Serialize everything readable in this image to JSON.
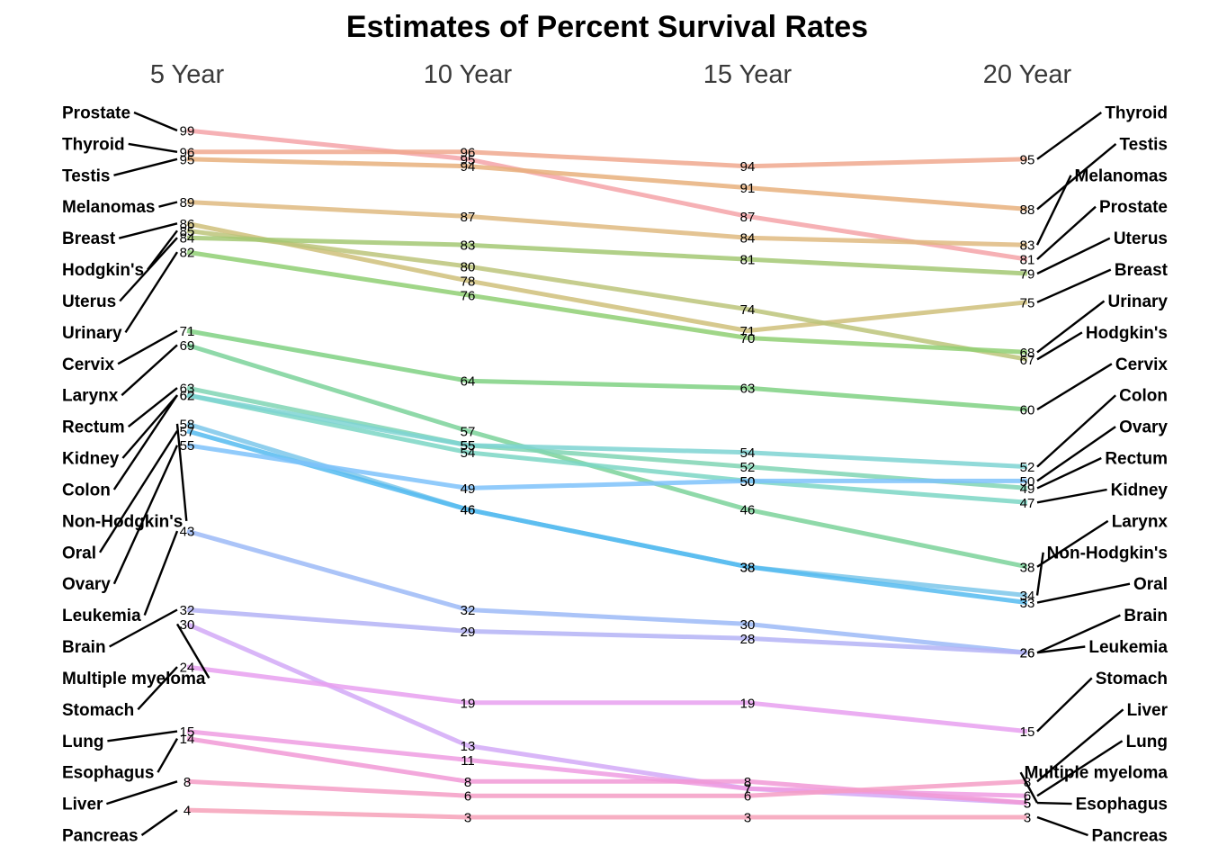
{
  "chart_data": {
    "type": "line",
    "title": "Estimates of Percent Survival Rates",
    "x": [
      "5 Year",
      "10 Year",
      "15 Year",
      "20 Year"
    ],
    "ylim": [
      3,
      99
    ],
    "grid": false,
    "legend": "none",
    "series": [
      {
        "name": "Prostate",
        "values": [
          99,
          95,
          87,
          81
        ],
        "color": "#f4a3a8"
      },
      {
        "name": "Thyroid",
        "values": [
          96,
          96,
          94,
          95
        ],
        "color": "#f0a88e"
      },
      {
        "name": "Testis",
        "values": [
          95,
          94,
          91,
          88
        ],
        "color": "#e8b07c"
      },
      {
        "name": "Melanomas",
        "values": [
          89,
          87,
          84,
          83
        ],
        "color": "#dfba80"
      },
      {
        "name": "Breast",
        "values": [
          86,
          78,
          71,
          75
        ],
        "color": "#cfc07a"
      },
      {
        "name": "Hodgkin's",
        "values": [
          85,
          80,
          74,
          67
        ],
        "color": "#bcc47a"
      },
      {
        "name": "Uterus",
        "values": [
          84,
          83,
          81,
          79
        ],
        "color": "#a3c873"
      },
      {
        "name": "Urinary",
        "values": [
          82,
          76,
          70,
          68
        ],
        "color": "#8fcf73"
      },
      {
        "name": "Cervix",
        "values": [
          71,
          64,
          63,
          60
        ],
        "color": "#7fd183"
      },
      {
        "name": "Larynx",
        "values": [
          69,
          57,
          46,
          38
        ],
        "color": "#7bd29a"
      },
      {
        "name": "Rectum",
        "values": [
          63,
          55,
          52,
          49
        ],
        "color": "#80d5b4"
      },
      {
        "name": "Kidney",
        "values": [
          62,
          54,
          50,
          47
        ],
        "color": "#7bd6c4"
      },
      {
        "name": "Colon",
        "values": [
          62,
          55,
          54,
          52
        ],
        "color": "#7ed3d2"
      },
      {
        "name": "Non-Hodgkin's",
        "values": [
          58,
          46,
          38,
          34
        ],
        "color": "#7cc7ea"
      },
      {
        "name": "Oral",
        "values": [
          57,
          46,
          38,
          33
        ],
        "color": "#55bbf0"
      },
      {
        "name": "Ovary",
        "values": [
          55,
          49,
          50,
          50
        ],
        "color": "#7ec2fa"
      },
      {
        "name": "Leukemia",
        "values": [
          43,
          32,
          30,
          26
        ],
        "color": "#9cbaf7"
      },
      {
        "name": "Brain",
        "values": [
          32,
          29,
          28,
          26
        ],
        "color": "#b4b3f6"
      },
      {
        "name": "Multiple myeloma",
        "values": [
          30,
          13,
          7,
          5
        ],
        "color": "#d2a9f7"
      },
      {
        "name": "Stomach",
        "values": [
          24,
          19,
          19,
          15
        ],
        "color": "#e8a0f0"
      },
      {
        "name": "Lung",
        "values": [
          15,
          11,
          7,
          6
        ],
        "color": "#ef9ce2"
      },
      {
        "name": "Esophagus",
        "values": [
          14,
          8,
          8,
          5
        ],
        "color": "#f199d6"
      },
      {
        "name": "Liver",
        "values": [
          8,
          6,
          6,
          8
        ],
        "color": "#f59dc6"
      },
      {
        "name": "Pancreas",
        "values": [
          4,
          3,
          3,
          3
        ],
        "color": "#f6a1b8"
      }
    ],
    "left_labels_order": [
      "Prostate",
      "Thyroid",
      "Testis",
      "Melanomas",
      "Breast",
      "Hodgkin's",
      "Uterus",
      "Urinary",
      "Cervix",
      "Larynx",
      "Rectum",
      "Kidney",
      "Colon",
      "Non-Hodgkin's",
      "Oral",
      "Ovary",
      "Leukemia",
      "Brain",
      "Multiple myeloma",
      "Stomach",
      "Lung",
      "Esophagus",
      "Liver",
      "Pancreas"
    ],
    "right_labels_order": [
      "Thyroid",
      "Testis",
      "Melanomas",
      "Prostate",
      "Uterus",
      "Breast",
      "Urinary",
      "Hodgkin's",
      "Cervix",
      "Colon",
      "Ovary",
      "Rectum",
      "Kidney",
      "Larynx",
      "Non-Hodgkin's",
      "Oral",
      "Brain",
      "Leukemia",
      "Stomach",
      "Liver",
      "Lung",
      "Multiple myeloma",
      "Esophagus",
      "Pancreas"
    ]
  }
}
